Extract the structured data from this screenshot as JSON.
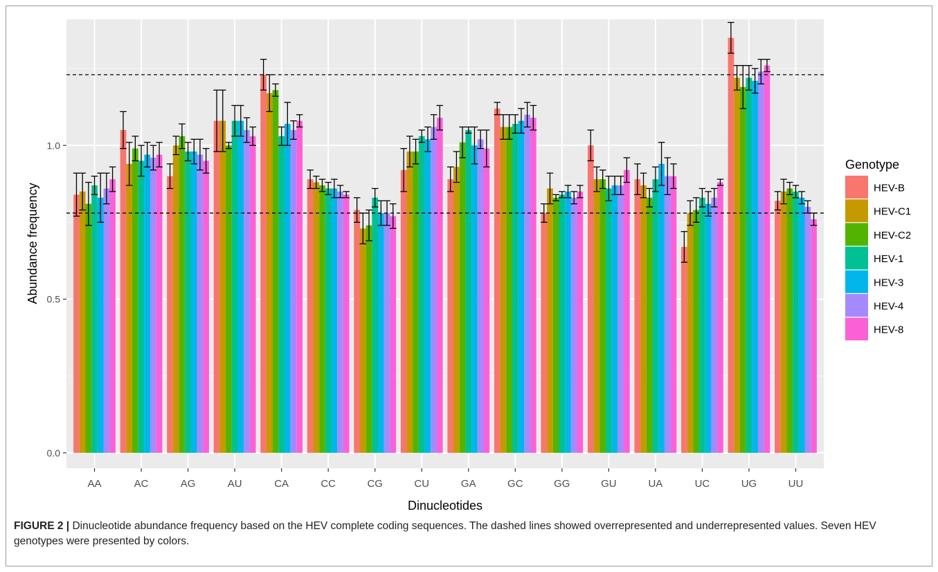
{
  "caption": {
    "label": "FIGURE 2",
    "separator": " | ",
    "text": "Dinucleotide abundance frequency based on the HEV complete coding sequences. The dashed lines showed overrepresented and underrepresented values. Seven HEV genotypes were presented by colors."
  },
  "chart_data": {
    "type": "bar",
    "xlabel": "Dinucleotides",
    "ylabel": "Abundance frequency",
    "ylim": [
      -0.05,
      1.41
    ],
    "yticks": [
      0.0,
      0.5,
      1.0
    ],
    "ytick_labels": [
      "0.0",
      "0.5",
      "1.0"
    ],
    "grid": true,
    "legend": {
      "title": "Genotype",
      "placement": "right"
    },
    "reference_lines": [
      1.23,
      0.78
    ],
    "categories": [
      "AA",
      "AC",
      "AG",
      "AU",
      "CA",
      "CC",
      "CG",
      "CU",
      "GA",
      "GC",
      "GG",
      "GU",
      "UA",
      "UC",
      "UG",
      "UU"
    ],
    "colors": [
      "#F8766D",
      "#C49A00",
      "#53B400",
      "#00C094",
      "#00B6EB",
      "#A58AFF",
      "#FB61D7"
    ],
    "series": [
      {
        "name": "HEV-B",
        "values": [
          0.84,
          1.05,
          0.9,
          1.08,
          1.23,
          0.89,
          0.79,
          0.92,
          0.89,
          1.12,
          0.78,
          1.0,
          0.89,
          0.67,
          1.35,
          0.82
        ],
        "errors": [
          0.07,
          0.06,
          0.04,
          0.1,
          0.05,
          0.03,
          0.04,
          0.07,
          0.04,
          0.02,
          0.03,
          0.05,
          0.05,
          0.05,
          0.05,
          0.03
        ]
      },
      {
        "name": "HEV-C1",
        "values": [
          0.85,
          0.94,
          1.0,
          1.08,
          1.17,
          0.88,
          0.73,
          0.98,
          0.93,
          1.06,
          0.86,
          0.89,
          0.87,
          0.78,
          1.22,
          0.85
        ],
        "errors": [
          0.06,
          0.07,
          0.03,
          0.1,
          0.06,
          0.02,
          0.05,
          0.05,
          0.05,
          0.04,
          0.05,
          0.04,
          0.04,
          0.04,
          0.04,
          0.04
        ]
      },
      {
        "name": "HEV-C2",
        "values": [
          0.81,
          0.99,
          1.03,
          1.0,
          1.18,
          0.87,
          0.74,
          0.98,
          1.01,
          1.06,
          0.83,
          0.89,
          0.83,
          0.79,
          1.19,
          0.86
        ],
        "errors": [
          0.07,
          0.04,
          0.04,
          0.01,
          0.02,
          0.02,
          0.05,
          0.04,
          0.05,
          0.04,
          0.01,
          0.03,
          0.03,
          0.04,
          0.07,
          0.02
        ]
      },
      {
        "name": "HEV-1",
        "values": [
          0.87,
          0.95,
          0.98,
          1.08,
          1.03,
          0.86,
          0.83,
          1.03,
          1.05,
          1.07,
          0.84,
          0.86,
          0.89,
          0.83,
          1.22,
          0.85
        ],
        "errors": [
          0.03,
          0.05,
          0.03,
          0.05,
          0.03,
          0.02,
          0.03,
          0.02,
          0.01,
          0.03,
          0.01,
          0.04,
          0.04,
          0.03,
          0.04,
          0.02
        ]
      },
      {
        "name": "HEV-3",
        "values": [
          0.83,
          0.97,
          0.98,
          1.08,
          1.07,
          0.86,
          0.78,
          1.02,
          1.0,
          1.08,
          0.85,
          0.87,
          0.94,
          0.81,
          1.21,
          0.83
        ],
        "errors": [
          0.08,
          0.04,
          0.04,
          0.05,
          0.07,
          0.03,
          0.04,
          0.04,
          0.06,
          0.04,
          0.02,
          0.03,
          0.07,
          0.04,
          0.04,
          0.02
        ]
      },
      {
        "name": "HEV-4",
        "values": [
          0.86,
          0.96,
          0.97,
          1.05,
          1.05,
          0.85,
          0.78,
          1.06,
          1.02,
          1.1,
          0.83,
          0.87,
          0.9,
          0.83,
          1.24,
          0.8
        ],
        "errors": [
          0.05,
          0.04,
          0.05,
          0.04,
          0.03,
          0.02,
          0.04,
          0.04,
          0.03,
          0.04,
          0.02,
          0.03,
          0.06,
          0.03,
          0.04,
          0.02
        ]
      },
      {
        "name": "HEV-8",
        "values": [
          0.89,
          0.97,
          0.95,
          1.03,
          1.08,
          0.84,
          0.77,
          1.09,
          0.99,
          1.09,
          0.85,
          0.92,
          0.9,
          0.88,
          1.26,
          0.76
        ],
        "errors": [
          0.04,
          0.04,
          0.04,
          0.03,
          0.02,
          0.01,
          0.04,
          0.04,
          0.06,
          0.04,
          0.02,
          0.04,
          0.04,
          0.01,
          0.02,
          0.02
        ]
      }
    ]
  }
}
